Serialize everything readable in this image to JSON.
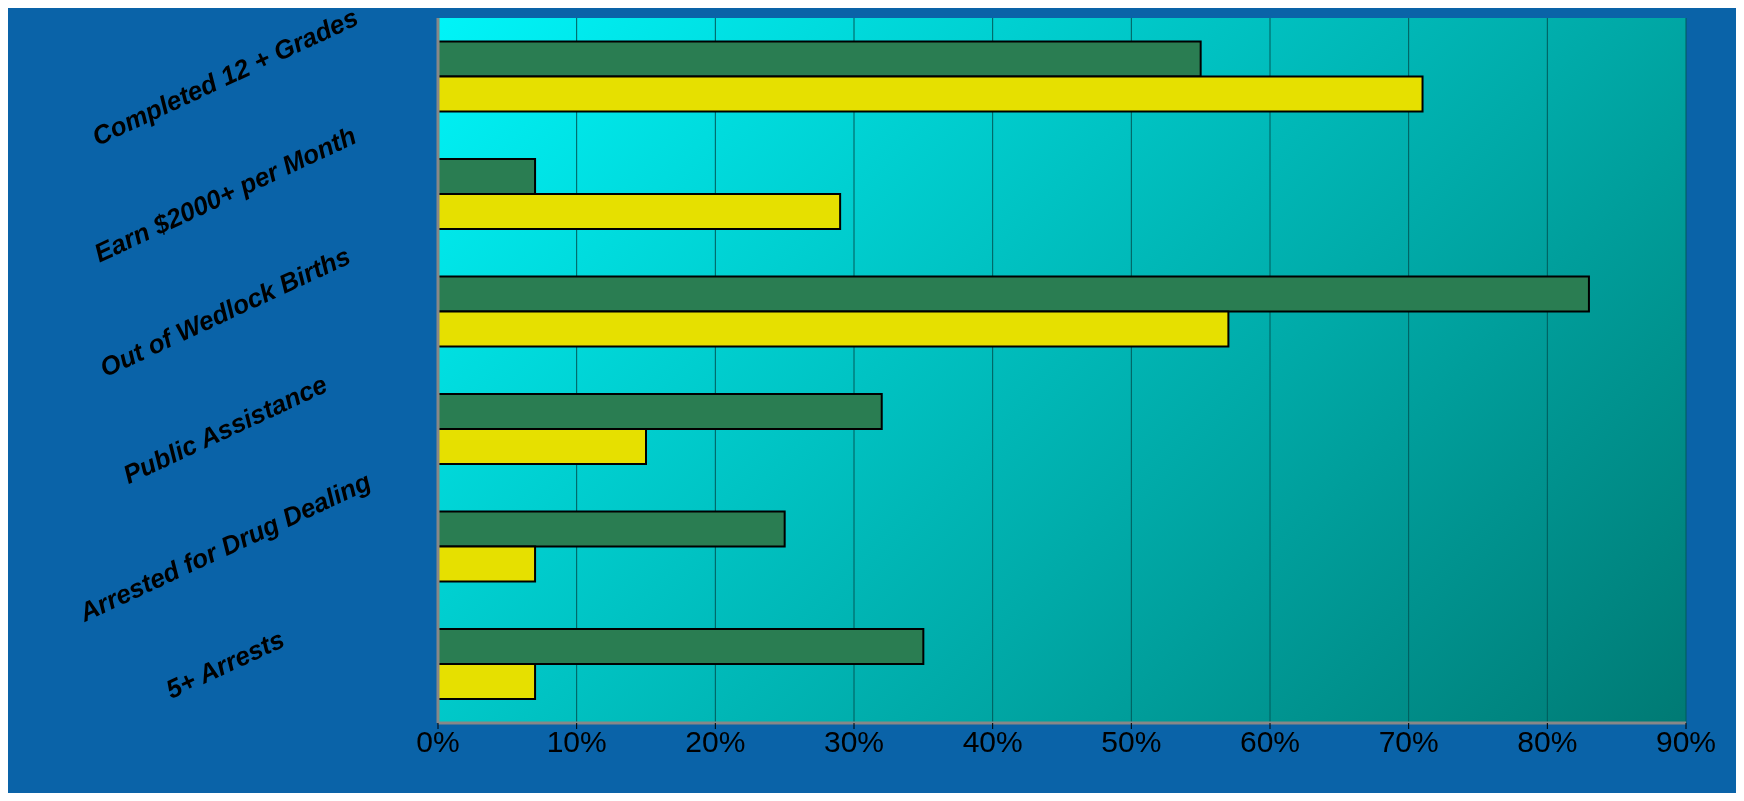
{
  "chart_data": {
    "type": "bar",
    "orientation": "horizontal",
    "categories": [
      "Completed 12 + Grades",
      "Earn $2000+ per Month",
      "Out of Wedlock Births",
      "Public Assistance",
      "Arrested for Drug Dealing",
      "5+ Arrests"
    ],
    "series": [
      {
        "color": "#2a7d52",
        "values": [
          55,
          7,
          83,
          32,
          25,
          35
        ]
      },
      {
        "color": "#e6e000",
        "values": [
          71,
          29,
          57,
          15,
          7,
          7
        ]
      }
    ],
    "xlim": [
      0,
      90
    ],
    "xticks": [
      {
        "value": 0,
        "label": "0%"
      },
      {
        "value": 10,
        "label": "10%"
      },
      {
        "value": 20,
        "label": "20%"
      },
      {
        "value": 30,
        "label": "30%"
      },
      {
        "value": 40,
        "label": "40%"
      },
      {
        "value": 50,
        "label": "50%"
      },
      {
        "value": 60,
        "label": "60%"
      },
      {
        "value": 70,
        "label": "70%"
      },
      {
        "value": 80,
        "label": "80%"
      },
      {
        "value": 90,
        "label": "90%"
      }
    ],
    "grid": "x"
  }
}
